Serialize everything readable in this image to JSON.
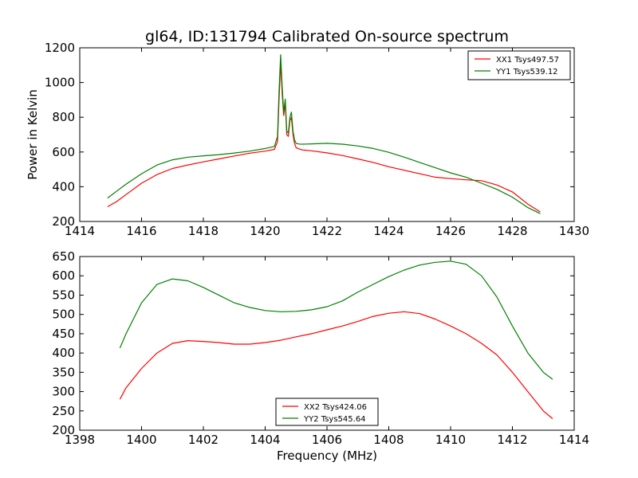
{
  "chart_data": {
    "title": "gl64, ID:131794 Calibrated On-source spectrum",
    "panels": [
      {
        "type": "line",
        "xlim": [
          1414,
          1430
        ],
        "ylim": [
          200,
          1200
        ],
        "xticks": [
          "1414",
          "1416",
          "1418",
          "1420",
          "1422",
          "1424",
          "1426",
          "1428",
          "1430"
        ],
        "yticks": [
          "200",
          "400",
          "600",
          "800",
          "1000",
          "1200"
        ],
        "ylabel": "Power in Kelvin",
        "xlabel": "",
        "legend_position": "top-right",
        "series": [
          {
            "name": "XX1 Tsys497.57",
            "color": "#ff0000",
            "x": [
              1414.9,
              1415.2,
              1415.5,
              1416.0,
              1416.5,
              1417.0,
              1417.5,
              1418.0,
              1418.5,
              1419.0,
              1419.5,
              1420.0,
              1420.3,
              1420.4,
              1420.45,
              1420.5,
              1420.55,
              1420.6,
              1420.65,
              1420.7,
              1420.75,
              1420.8,
              1420.85,
              1420.9,
              1420.95,
              1421.0,
              1421.1,
              1421.2,
              1421.5,
              1422.0,
              1422.5,
              1423.0,
              1423.5,
              1424.0,
              1424.5,
              1425.0,
              1425.5,
              1426.0,
              1426.5,
              1427.0,
              1427.5,
              1428.0,
              1428.5,
              1428.9
            ],
            "values": [
              285,
              315,
              355,
              420,
              470,
              505,
              525,
              543,
              560,
              577,
              593,
              605,
              615,
              660,
              900,
              1115,
              940,
              810,
              880,
              700,
              690,
              780,
              800,
              700,
              650,
              625,
              618,
              612,
              607,
              595,
              580,
              560,
              540,
              515,
              495,
              475,
              455,
              447,
              440,
              435,
              410,
              370,
              300,
              255
            ]
          },
          {
            "name": "YY1 Tsys539.12",
            "color": "#008000",
            "x": [
              1414.9,
              1415.2,
              1415.5,
              1416.0,
              1416.5,
              1417.0,
              1417.5,
              1418.0,
              1418.5,
              1419.0,
              1419.5,
              1420.0,
              1420.3,
              1420.4,
              1420.45,
              1420.5,
              1420.55,
              1420.6,
              1420.65,
              1420.7,
              1420.75,
              1420.8,
              1420.85,
              1420.9,
              1420.95,
              1421.0,
              1421.1,
              1421.2,
              1421.5,
              1422.0,
              1422.5,
              1423.0,
              1423.5,
              1424.0,
              1424.5,
              1425.0,
              1425.5,
              1426.0,
              1426.5,
              1427.0,
              1427.5,
              1428.0,
              1428.5,
              1428.9
            ],
            "values": [
              335,
              375,
              415,
              475,
              525,
              555,
              570,
              578,
              585,
              594,
              605,
              620,
              632,
              690,
              950,
              1160,
              980,
              830,
              905,
              720,
              710,
              800,
              830,
              720,
              670,
              650,
              646,
              645,
              647,
              650,
              645,
              635,
              620,
              598,
              570,
              540,
              510,
              480,
              455,
              420,
              385,
              340,
              280,
              245
            ]
          }
        ]
      },
      {
        "type": "line",
        "xlim": [
          1398,
          1414
        ],
        "ylim": [
          200,
          650
        ],
        "xticks": [
          "1398",
          "1400",
          "1402",
          "1404",
          "1406",
          "1408",
          "1410",
          "1412",
          "1414"
        ],
        "yticks": [
          "200",
          "250",
          "300",
          "350",
          "400",
          "450",
          "500",
          "550",
          "600",
          "650"
        ],
        "xlabel": "Frequency (MHz)",
        "ylabel": "",
        "legend_position": "bottom-center",
        "series": [
          {
            "name": "XX2 Tsys424.06",
            "color": "#ff0000",
            "x": [
              1399.3,
              1399.5,
              1400.0,
              1400.5,
              1401.0,
              1401.5,
              1402.0,
              1402.5,
              1403.0,
              1403.5,
              1404.0,
              1404.5,
              1405.0,
              1405.5,
              1406.0,
              1406.5,
              1407.0,
              1407.5,
              1408.0,
              1408.5,
              1409.0,
              1409.5,
              1410.0,
              1410.5,
              1411.0,
              1411.5,
              1412.0,
              1412.5,
              1413.0,
              1413.3
            ],
            "values": [
              280,
              310,
              360,
              400,
              425,
              432,
              430,
              427,
              423,
              423,
              427,
              433,
              442,
              450,
              460,
              470,
              482,
              495,
              503,
              507,
              502,
              488,
              470,
              450,
              425,
              395,
              350,
              300,
              250,
              230
            ]
          },
          {
            "name": "YY2 Tsys545.64",
            "color": "#008000",
            "x": [
              1399.3,
              1399.5,
              1400.0,
              1400.5,
              1401.0,
              1401.5,
              1402.0,
              1402.5,
              1403.0,
              1403.5,
              1404.0,
              1404.5,
              1405.0,
              1405.5,
              1406.0,
              1406.5,
              1407.0,
              1407.5,
              1408.0,
              1408.5,
              1409.0,
              1409.5,
              1410.0,
              1410.5,
              1411.0,
              1411.5,
              1412.0,
              1412.5,
              1413.0,
              1413.3
            ],
            "values": [
              413,
              450,
              530,
              578,
              592,
              587,
              570,
              550,
              530,
              518,
              510,
              507,
              508,
              512,
              520,
              535,
              558,
              578,
              598,
              615,
              628,
              635,
              638,
              630,
              600,
              545,
              470,
              400,
              350,
              332
            ]
          }
        ]
      }
    ]
  }
}
